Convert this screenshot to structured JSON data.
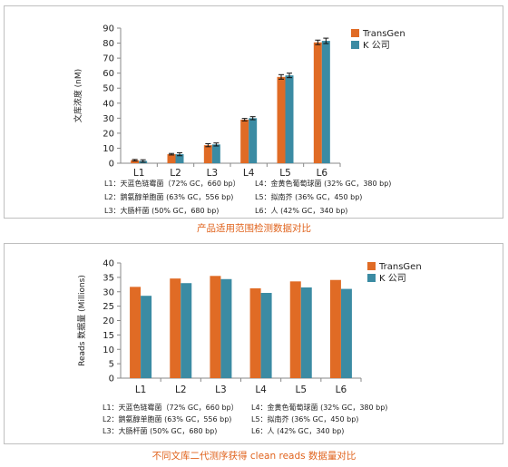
{
  "chart_data": [
    {
      "type": "bar",
      "categories": [
        "L1",
        "L2",
        "L3",
        "L4",
        "L5",
        "L6"
      ],
      "series": [
        {
          "name": "TransGen",
          "values": [
            2,
            6,
            12,
            29,
            57.5,
            80.5
          ],
          "errors": [
            0.5,
            0.5,
            1,
            0.8,
            1.5,
            1.5
          ]
        },
        {
          "name": "K 公司",
          "values": [
            1.5,
            6,
            12.5,
            30,
            58.5,
            81.5
          ],
          "errors": [
            0.8,
            1,
            1,
            1,
            1.5,
            1.8
          ]
        }
      ],
      "ylabel": "文库浓度 (nM)",
      "ylim": [
        0,
        90
      ],
      "yticks": [
        0,
        10,
        20,
        30,
        40,
        50,
        60,
        70,
        80,
        90
      ],
      "legend": "top-right",
      "grid": false,
      "notes": [
        "L1：天蓝色链霉菌（72% GC，660 bp）",
        "L2：鹅氨醇单胞菌 (63% GC，556 bp)",
        "L3：大肠杆菌 (50% GC，680 bp)",
        "L4：金黄色葡萄球菌 (32% GC，380 bp)",
        "L5：拟南芥 (36% GC，450 bp)",
        "L6：人 (42% GC，340 bp)"
      ],
      "caption": "产品适用范围检测数据对比"
    },
    {
      "type": "bar",
      "categories": [
        "L1",
        "L2",
        "L3",
        "L4",
        "L5",
        "L6"
      ],
      "series": [
        {
          "name": "TransGen",
          "values": [
            31.7,
            34.6,
            35.5,
            31.2,
            33.6,
            34.1
          ]
        },
        {
          "name": "K 公司",
          "values": [
            28.6,
            33.0,
            34.4,
            29.6,
            31.5,
            31.0
          ]
        }
      ],
      "ylabel": "Reads 数据量 (Millions)",
      "ylim": [
        0,
        40
      ],
      "yticks": [
        0,
        5,
        10,
        15,
        20,
        25,
        30,
        35,
        40
      ],
      "legend": "top-right",
      "grid": false,
      "notes": [
        "L1：天蓝色链霉菌（72% GC，660 bp）",
        "L2：鹅氨醇单胞菌 (63% GC，556 bp)",
        "L3：大肠杆菌 (50% GC，680 bp)",
        "L4：金黄色葡萄球菌 (32% GC，380 bp)",
        "L5：拟南芥 (36% GC，450 bp)",
        "L6：人 (42% GC，340 bp)"
      ],
      "caption": "不同文库二代测序获得 clean reads 数据量对比"
    }
  ],
  "colors": {
    "transgen": "#e06b25",
    "kcompany": "#3b8ba3",
    "caption": "#e0631d"
  }
}
